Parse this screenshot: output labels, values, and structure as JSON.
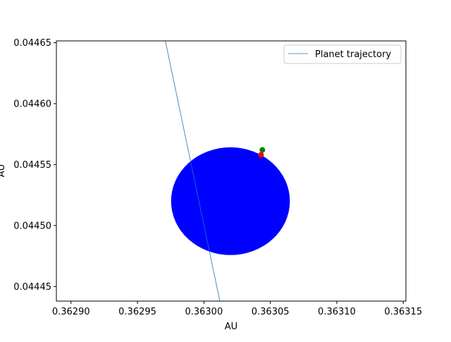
{
  "chart_data": {
    "type": "scatter",
    "title": "",
    "xlabel": "AU",
    "ylabel": "AU",
    "xlim": [
      0.362889,
      0.363152
    ],
    "ylim": [
      0.044438,
      0.0446515
    ],
    "x_ticks": [
      {
        "value": 0.3629,
        "label": "0.36290"
      },
      {
        "value": 0.36295,
        "label": "0.36295"
      },
      {
        "value": 0.363,
        "label": "0.36300"
      },
      {
        "value": 0.36305,
        "label": "0.36305"
      },
      {
        "value": 0.3631,
        "label": "0.36310"
      },
      {
        "value": 0.36315,
        "label": "0.36315"
      }
    ],
    "y_ticks": [
      {
        "value": 0.0444,
        "label": "0.04440"
      },
      {
        "value": 0.04445,
        "label": "0.04445"
      },
      {
        "value": 0.0445,
        "label": "0.04450"
      },
      {
        "value": 0.04455,
        "label": "0.04455"
      },
      {
        "value": 0.0446,
        "label": "0.04460"
      },
      {
        "value": 0.04465,
        "label": "0.04465"
      }
    ],
    "grid": false,
    "legend_position": "upper right",
    "series": [
      {
        "name": "Planet trajectory",
        "kind": "line",
        "color": "#1f77b4",
        "x": [
          0.362971,
          0.363012
        ],
        "y": [
          0.0446515,
          0.044438
        ]
      }
    ],
    "star": {
      "kind": "ellipse",
      "color": "#0000ff",
      "center_x": 0.36302,
      "center_y": 0.04452,
      "radius_x": 4.47e-05,
      "radius_y": 4.42e-05
    },
    "points": [
      {
        "x": 0.363044,
        "y": 0.044562,
        "color": "#008000"
      },
      {
        "x": 0.363043,
        "y": 0.044558,
        "color": "#ff0000"
      }
    ]
  }
}
